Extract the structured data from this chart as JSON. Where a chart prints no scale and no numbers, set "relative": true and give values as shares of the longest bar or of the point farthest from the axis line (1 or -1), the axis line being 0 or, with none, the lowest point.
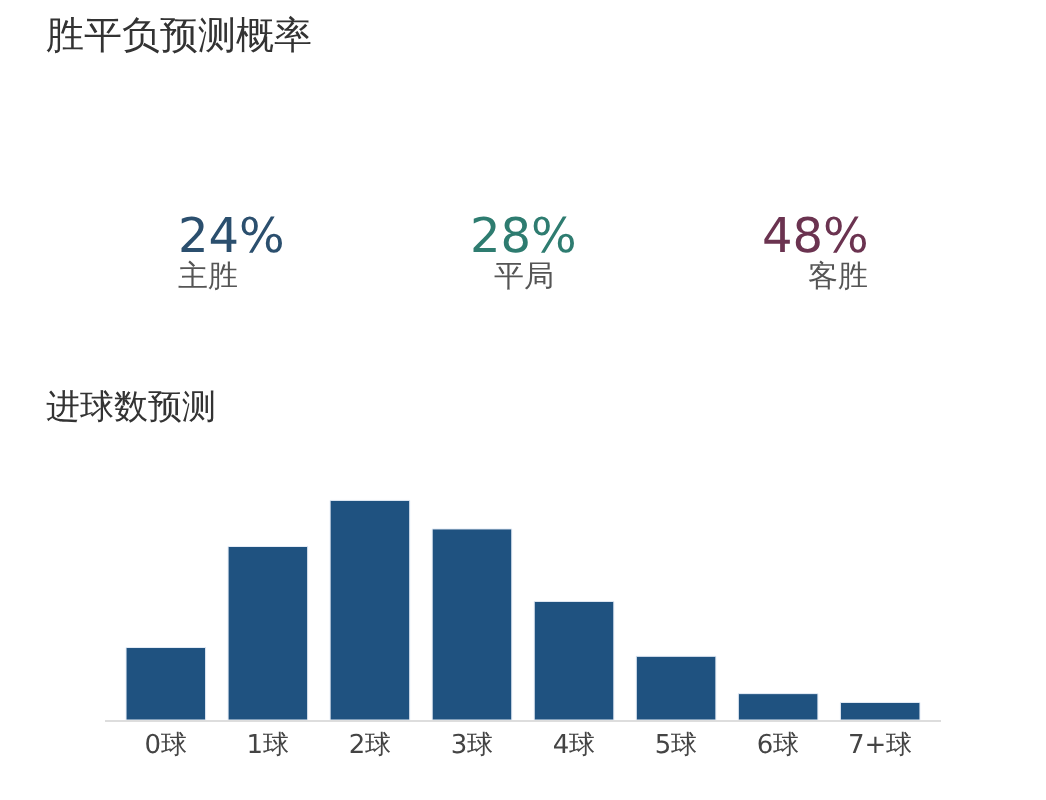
{
  "chart_data": [
    {
      "type": "other",
      "title": "胜平负预测概率",
      "categories": [
        "主胜",
        "平局",
        "客胜"
      ],
      "values": [
        24,
        28,
        48
      ],
      "value_labels": [
        "24%",
        "28%",
        "48%"
      ],
      "colors": [
        "#2b4f6e",
        "#2e7c70",
        "#6b3350"
      ]
    },
    {
      "type": "bar",
      "title": "进球数预测",
      "relative": true,
      "categories": [
        "0球",
        "1球",
        "2球",
        "3球",
        "4球",
        "5球",
        "6球",
        "7+球"
      ],
      "values": [
        0.33,
        0.79,
        1,
        0.87,
        0.54,
        0.29,
        0.12,
        0.08
      ],
      "color": "#1f5280"
    }
  ]
}
